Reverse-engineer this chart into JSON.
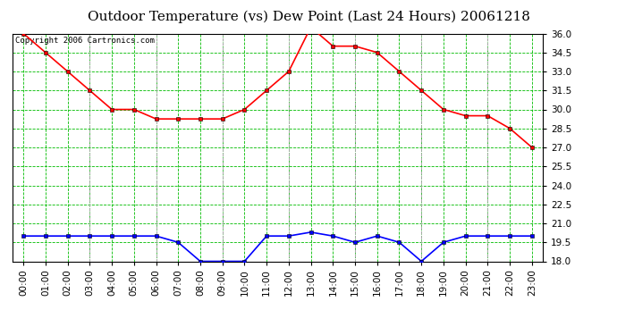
{
  "title": "Outdoor Temperature (vs) Dew Point (Last 24 Hours) 20061218",
  "copyright": "Copyright 2006 Cartronics.com",
  "hours": [
    "00:00",
    "01:00",
    "02:00",
    "03:00",
    "04:00",
    "05:00",
    "06:00",
    "07:00",
    "08:00",
    "09:00",
    "10:00",
    "11:00",
    "12:00",
    "13:00",
    "14:00",
    "15:00",
    "16:00",
    "17:00",
    "18:00",
    "19:00",
    "20:00",
    "21:00",
    "22:00",
    "23:00"
  ],
  "temp": [
    36.0,
    34.5,
    33.0,
    31.5,
    30.0,
    30.0,
    29.25,
    29.25,
    29.25,
    29.25,
    30.0,
    31.5,
    33.0,
    36.5,
    35.0,
    35.0,
    34.5,
    33.0,
    31.5,
    30.0,
    29.5,
    29.5,
    28.5,
    27.0
  ],
  "dew": [
    20.0,
    20.0,
    20.0,
    20.0,
    20.0,
    20.0,
    20.0,
    19.5,
    18.0,
    18.0,
    18.0,
    20.0,
    20.0,
    20.3,
    20.0,
    19.5,
    20.0,
    19.5,
    18.0,
    19.5,
    20.0,
    20.0,
    20.0,
    20.0
  ],
  "temp_color": "#ff0000",
  "dew_color": "#0000ff",
  "bg_color": "#ffffff",
  "plot_bg_color": "#ffffff",
  "grid_color_gray": "#aaaaaa",
  "grid_color_green": "#00bb00",
  "ylim": [
    18.0,
    36.0
  ],
  "yticks": [
    18.0,
    19.5,
    21.0,
    22.5,
    24.0,
    25.5,
    27.0,
    28.5,
    30.0,
    31.5,
    33.0,
    34.5,
    36.0
  ],
  "title_fontsize": 11,
  "tick_fontsize": 7.5,
  "copyright_fontsize": 6.5,
  "markersize": 3,
  "linewidth": 1.2,
  "gray_vlines": [
    3,
    6,
    9,
    12,
    15,
    18,
    21
  ]
}
